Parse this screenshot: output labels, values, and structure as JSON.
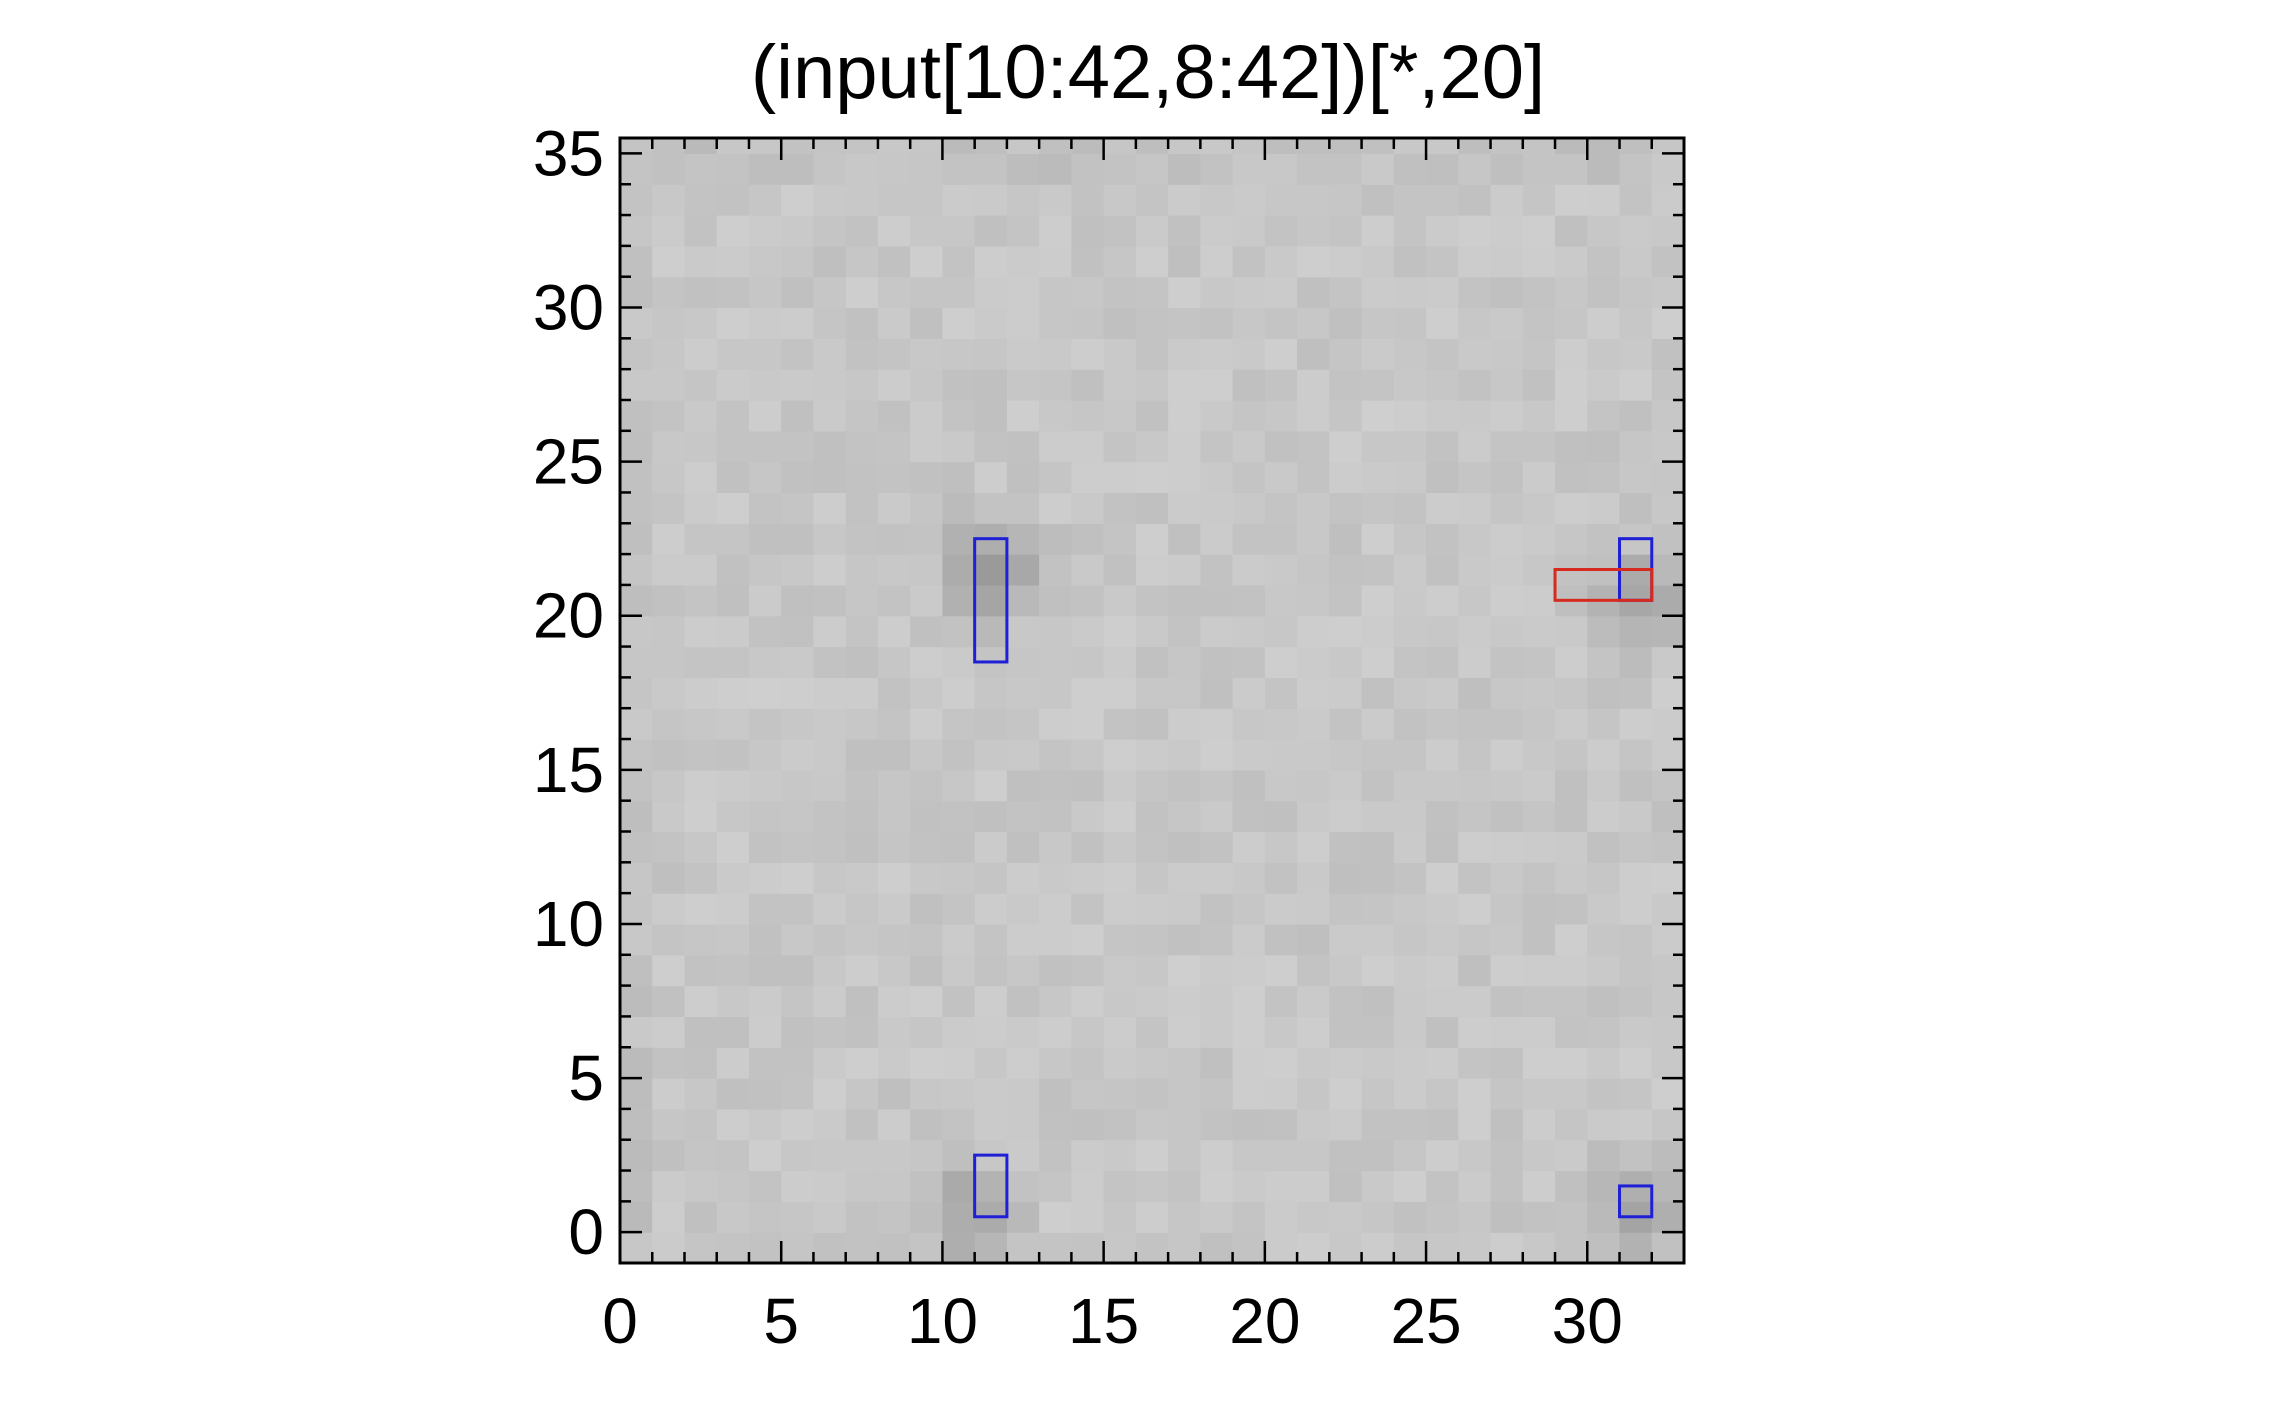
{
  "chart_data": {
    "type": "heatmap",
    "title": "(input[10:42,8:42])[*,20]",
    "xlabel": "",
    "ylabel": "",
    "xlim": [
      0,
      33
    ],
    "ylim": [
      -1,
      35.5
    ],
    "x_ticks": [
      0,
      5,
      10,
      15,
      20,
      25,
      30
    ],
    "y_ticks": [
      0,
      5,
      10,
      15,
      20,
      25,
      30,
      35
    ],
    "colormap": "grayscale",
    "grid": "x 0-32 by y 0-35",
    "value_range": [
      0,
      1
    ],
    "background_level": 0.78,
    "dark_spots": [
      {
        "x": 11.5,
        "y": 21.5,
        "strength": 0.18
      },
      {
        "x": 31.5,
        "y": 20.5,
        "strength": 0.15
      },
      {
        "x": 11.0,
        "y": 0.5,
        "strength": 0.15
      },
      {
        "x": 31.5,
        "y": 0.5,
        "strength": 0.15
      }
    ],
    "rectangles": [
      {
        "color": "#1f1fd6",
        "x0": 11,
        "x1": 12,
        "y0": 18.5,
        "y1": 22.5
      },
      {
        "color": "#1f1fd6",
        "x0": 11,
        "x1": 12,
        "y0": 0.5,
        "y1": 2.5
      },
      {
        "color": "#1f1fd6",
        "x0": 31,
        "x1": 32,
        "y0": 20.5,
        "y1": 22.5
      },
      {
        "color": "#1f1fd6",
        "x0": 31,
        "x1": 32,
        "y0": 0.5,
        "y1": 1.5
      },
      {
        "color": "#d62a1f",
        "x0": 29,
        "x1": 32,
        "y0": 20.5,
        "y1": 21.5
      }
    ]
  }
}
